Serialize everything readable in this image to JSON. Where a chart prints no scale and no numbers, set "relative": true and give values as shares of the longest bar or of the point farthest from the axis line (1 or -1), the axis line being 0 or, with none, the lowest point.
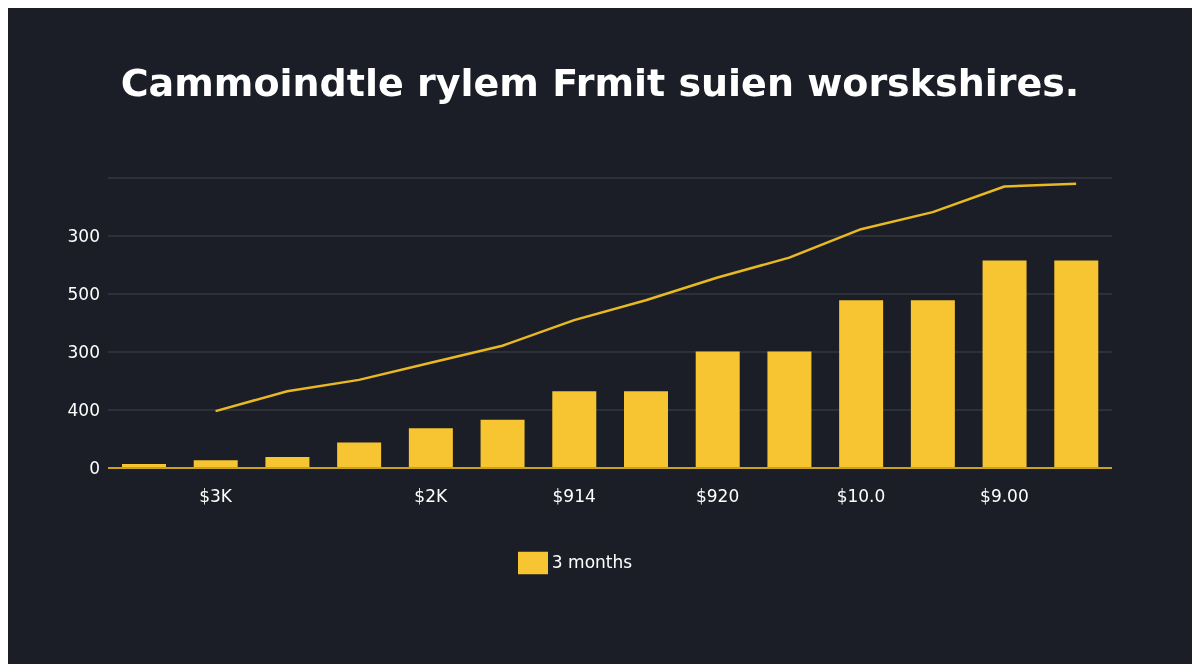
{
  "chart_data": {
    "type": "bar",
    "title": "Cammoindtle rylem Frmit suien worskshires.",
    "categories": [
      null,
      "$3K",
      null,
      null,
      "$2K",
      null,
      "$914",
      null,
      "$920",
      null,
      "$10.0",
      null,
      "$9.00",
      null
    ],
    "series": [
      {
        "name": "3 months",
        "color": "#f7c531",
        "values": [
          0.014,
          0.027,
          0.039,
          0.09,
          0.14,
          0.17,
          0.27,
          0.27,
          0.41,
          0.41,
          0.59,
          0.59,
          0.73,
          0.73
        ]
      },
      {
        "type": "line",
        "color": "#e8b923",
        "values": [
          null,
          0.2,
          0.27,
          0.31,
          0.37,
          0.43,
          0.52,
          0.59,
          0.67,
          0.74,
          0.84,
          0.9,
          0.99,
          1
        ]
      }
    ],
    "relative": true,
    "annotations": [
      "0",
      "400",
      "300",
      "500",
      "300"
    ],
    "grid": "y",
    "legend": "bottom",
    "marker": "none"
  }
}
